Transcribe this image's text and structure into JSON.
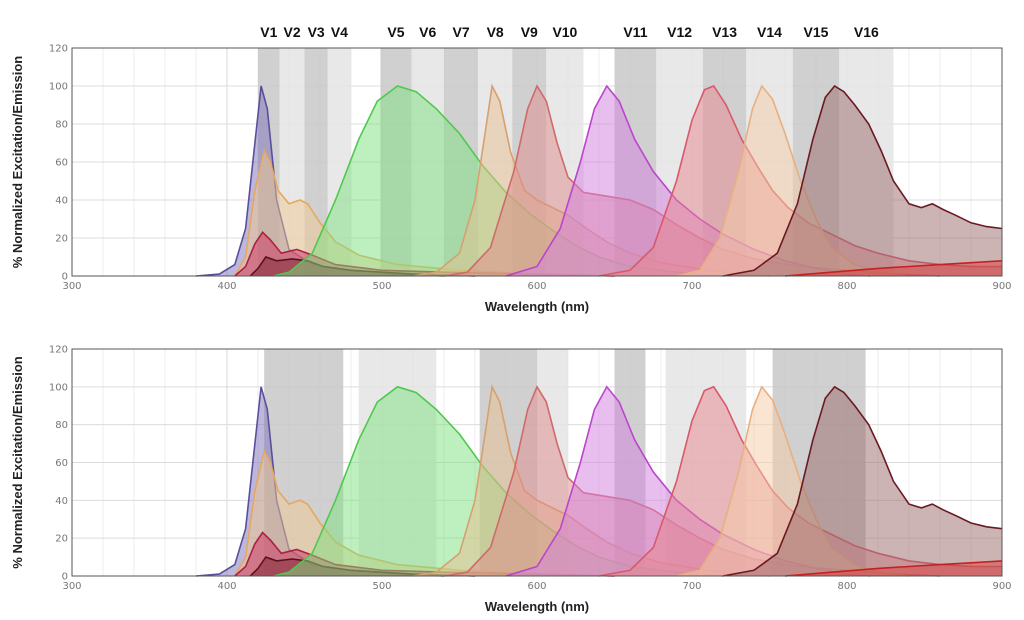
{
  "chart_data": [
    {
      "type": "area",
      "panel": "top",
      "title": "",
      "xlabel": "Wavelength (nm)",
      "ylabel": "% Normalized Excitation/Emission",
      "xlim": [
        300,
        900
      ],
      "ylim": [
        0,
        120
      ],
      "xticks": [
        "300",
        "400",
        "500",
        "600",
        "700",
        "800",
        "900"
      ],
      "yticks": [
        "0",
        "20",
        "40",
        "60",
        "80",
        "100",
        "120"
      ],
      "grid": true,
      "filters": [
        {
          "name": "V1",
          "start": 420,
          "end": 434,
          "shade": "dark"
        },
        {
          "name": "V2",
          "start": 434,
          "end": 450,
          "shade": "light"
        },
        {
          "name": "V3",
          "start": 450,
          "end": 465,
          "shade": "dark"
        },
        {
          "name": "V4",
          "start": 465,
          "end": 480,
          "shade": "light"
        },
        {
          "name": "V5",
          "start": 499,
          "end": 519,
          "shade": "dark"
        },
        {
          "name": "V6",
          "start": 519,
          "end": 540,
          "shade": "light"
        },
        {
          "name": "V7",
          "start": 540,
          "end": 562,
          "shade": "dark"
        },
        {
          "name": "V8",
          "start": 562,
          "end": 584,
          "shade": "light"
        },
        {
          "name": "V9",
          "start": 584,
          "end": 606,
          "shade": "dark"
        },
        {
          "name": "V10",
          "start": 606,
          "end": 630,
          "shade": "light"
        },
        {
          "name": "V11",
          "start": 650,
          "end": 677,
          "shade": "dark"
        },
        {
          "name": "V12",
          "start": 677,
          "end": 707,
          "shade": "light"
        },
        {
          "name": "V13",
          "start": 707,
          "end": 735,
          "shade": "dark"
        },
        {
          "name": "V14",
          "start": 735,
          "end": 765,
          "shade": "light"
        },
        {
          "name": "V15",
          "start": 765,
          "end": 795,
          "shade": "dark"
        },
        {
          "name": "V16",
          "start": 795,
          "end": 830,
          "shade": "light"
        }
      ]
    },
    {
      "type": "area",
      "panel": "bottom",
      "title": "",
      "xlabel": "Wavelength (nm)",
      "ylabel": "% Normalized Excitation/Emission",
      "xlim": [
        300,
        900
      ],
      "ylim": [
        0,
        120
      ],
      "xticks": [
        "300",
        "400",
        "500",
        "600",
        "700",
        "800",
        "900"
      ],
      "yticks": [
        "0",
        "20",
        "40",
        "60",
        "80",
        "100",
        "120"
      ],
      "grid": true,
      "filters": [
        {
          "start": 424,
          "end": 475,
          "shade": "dark"
        },
        {
          "start": 485,
          "end": 535,
          "shade": "light"
        },
        {
          "start": 563,
          "end": 600,
          "shade": "dark"
        },
        {
          "start": 600,
          "end": 620,
          "shade": "light"
        },
        {
          "start": 650,
          "end": 670,
          "shade": "dark"
        },
        {
          "start": 683,
          "end": 735,
          "shade": "light"
        },
        {
          "start": 752,
          "end": 812,
          "shade": "dark"
        }
      ]
    }
  ],
  "spectra": [
    {
      "id": "violet",
      "color": "#5a4f9c",
      "fill": "#7a6fb8",
      "points": [
        [
          380,
          0
        ],
        [
          395,
          1
        ],
        [
          405,
          6
        ],
        [
          412,
          25
        ],
        [
          418,
          70
        ],
        [
          422,
          100
        ],
        [
          426,
          88
        ],
        [
          432,
          40
        ],
        [
          440,
          14
        ],
        [
          455,
          6
        ],
        [
          480,
          3
        ],
        [
          510,
          1
        ],
        [
          540,
          0
        ]
      ]
    },
    {
      "id": "orange-tail",
      "color": "#e6a860",
      "fill": "#f0c890",
      "points": [
        [
          405,
          0
        ],
        [
          412,
          10
        ],
        [
          418,
          45
        ],
        [
          424,
          66
        ],
        [
          428,
          60
        ],
        [
          433,
          45
        ],
        [
          440,
          38
        ],
        [
          447,
          40
        ],
        [
          452,
          38
        ],
        [
          460,
          28
        ],
        [
          470,
          18
        ],
        [
          485,
          11
        ],
        [
          510,
          6
        ],
        [
          550,
          3
        ],
        [
          600,
          1
        ],
        [
          650,
          0
        ]
      ]
    },
    {
      "id": "red-small",
      "color": "#b02040",
      "fill": "#cc3060",
      "points": [
        [
          405,
          0
        ],
        [
          412,
          5
        ],
        [
          418,
          17
        ],
        [
          423,
          23
        ],
        [
          428,
          19
        ],
        [
          435,
          12
        ],
        [
          445,
          14
        ],
        [
          455,
          11
        ],
        [
          470,
          6
        ],
        [
          500,
          3
        ],
        [
          540,
          2
        ],
        [
          600,
          1
        ],
        [
          650,
          0
        ]
      ]
    },
    {
      "id": "maroon-small",
      "color": "#5a1418",
      "fill": "#7a2030",
      "points": [
        [
          415,
          0
        ],
        [
          420,
          4
        ],
        [
          425,
          10
        ],
        [
          432,
          8
        ],
        [
          442,
          9
        ],
        [
          452,
          8
        ],
        [
          462,
          5
        ],
        [
          480,
          3
        ],
        [
          520,
          1
        ],
        [
          560,
          0
        ]
      ]
    },
    {
      "id": "green",
      "color": "#4ec94e",
      "fill": "#7de07d",
      "points": [
        [
          430,
          0
        ],
        [
          440,
          2
        ],
        [
          455,
          12
        ],
        [
          470,
          40
        ],
        [
          485,
          72
        ],
        [
          497,
          92
        ],
        [
          510,
          100
        ],
        [
          522,
          97
        ],
        [
          535,
          88
        ],
        [
          550,
          75
        ],
        [
          565,
          58
        ],
        [
          580,
          44
        ],
        [
          595,
          33
        ],
        [
          610,
          24
        ],
        [
          625,
          16
        ],
        [
          640,
          10
        ],
        [
          660,
          5
        ],
        [
          690,
          2
        ],
        [
          720,
          0
        ]
      ]
    },
    {
      "id": "peach",
      "color": "#d7a070",
      "fill": "#e8c090",
      "points": [
        [
          520,
          0
        ],
        [
          535,
          2
        ],
        [
          550,
          12
        ],
        [
          560,
          40
        ],
        [
          567,
          78
        ],
        [
          571,
          100
        ],
        [
          576,
          92
        ],
        [
          583,
          65
        ],
        [
          592,
          45
        ],
        [
          600,
          40
        ],
        [
          610,
          36
        ],
        [
          620,
          32
        ],
        [
          632,
          25
        ],
        [
          645,
          18
        ],
        [
          660,
          12
        ],
        [
          680,
          7
        ],
        [
          710,
          3
        ],
        [
          750,
          0
        ]
      ]
    },
    {
      "id": "salmon",
      "color": "#d06a6a",
      "fill": "#e08a8a",
      "points": [
        [
          540,
          0
        ],
        [
          555,
          2
        ],
        [
          570,
          15
        ],
        [
          585,
          55
        ],
        [
          594,
          88
        ],
        [
          600,
          100
        ],
        [
          606,
          92
        ],
        [
          613,
          70
        ],
        [
          620,
          52
        ],
        [
          630,
          44
        ],
        [
          645,
          42
        ],
        [
          660,
          40
        ],
        [
          675,
          35
        ],
        [
          690,
          27
        ],
        [
          705,
          20
        ],
        [
          720,
          14
        ],
        [
          740,
          9
        ],
        [
          770,
          5
        ],
        [
          800,
          3
        ],
        [
          830,
          1
        ],
        [
          860,
          0
        ]
      ]
    },
    {
      "id": "magenta",
      "color": "#bb45cc",
      "fill": "#d27ede",
      "points": [
        [
          580,
          0
        ],
        [
          600,
          5
        ],
        [
          615,
          25
        ],
        [
          628,
          60
        ],
        [
          637,
          88
        ],
        [
          645,
          100
        ],
        [
          653,
          92
        ],
        [
          663,
          72
        ],
        [
          675,
          55
        ],
        [
          690,
          40
        ],
        [
          705,
          30
        ],
        [
          720,
          22
        ],
        [
          740,
          14
        ],
        [
          760,
          8
        ],
        [
          780,
          4
        ],
        [
          800,
          1
        ],
        [
          815,
          0
        ]
      ]
    },
    {
      "id": "rose",
      "color": "#d85a6a",
      "fill": "#e8868e",
      "points": [
        [
          640,
          0
        ],
        [
          660,
          3
        ],
        [
          675,
          15
        ],
        [
          690,
          50
        ],
        [
          700,
          82
        ],
        [
          708,
          98
        ],
        [
          714,
          100
        ],
        [
          722,
          90
        ],
        [
          732,
          72
        ],
        [
          742,
          58
        ],
        [
          752,
          45
        ],
        [
          762,
          36
        ],
        [
          775,
          28
        ],
        [
          790,
          22
        ],
        [
          805,
          16
        ],
        [
          820,
          12
        ],
        [
          840,
          8
        ],
        [
          860,
          6
        ],
        [
          880,
          5
        ],
        [
          900,
          5
        ]
      ]
    },
    {
      "id": "light-orange",
      "color": "#e8b080",
      "fill": "#f4cca6",
      "points": [
        [
          690,
          0
        ],
        [
          705,
          3
        ],
        [
          718,
          20
        ],
        [
          730,
          55
        ],
        [
          739,
          88
        ],
        [
          745,
          100
        ],
        [
          752,
          93
        ],
        [
          760,
          75
        ],
        [
          770,
          50
        ],
        [
          780,
          30
        ],
        [
          790,
          15
        ],
        [
          805,
          6
        ],
        [
          820,
          2
        ],
        [
          840,
          0
        ]
      ]
    },
    {
      "id": "brown",
      "color": "#6a1a24",
      "fill": "#9a6a6a",
      "points": [
        [
          720,
          0
        ],
        [
          740,
          3
        ],
        [
          755,
          12
        ],
        [
          768,
          38
        ],
        [
          778,
          72
        ],
        [
          786,
          94
        ],
        [
          792,
          100
        ],
        [
          798,
          97
        ],
        [
          805,
          90
        ],
        [
          814,
          80
        ],
        [
          822,
          66
        ],
        [
          830,
          50
        ],
        [
          840,
          38
        ],
        [
          848,
          36
        ],
        [
          855,
          38
        ],
        [
          862,
          35
        ],
        [
          870,
          32
        ],
        [
          880,
          28
        ],
        [
          890,
          26
        ],
        [
          900,
          25
        ]
      ]
    },
    {
      "id": "red-baseline",
      "color": "#c82020",
      "fill": "#d84040",
      "points": [
        [
          760,
          0
        ],
        [
          790,
          2
        ],
        [
          820,
          4
        ],
        [
          840,
          5
        ],
        [
          860,
          6
        ],
        [
          880,
          7
        ],
        [
          900,
          8
        ]
      ]
    }
  ]
}
